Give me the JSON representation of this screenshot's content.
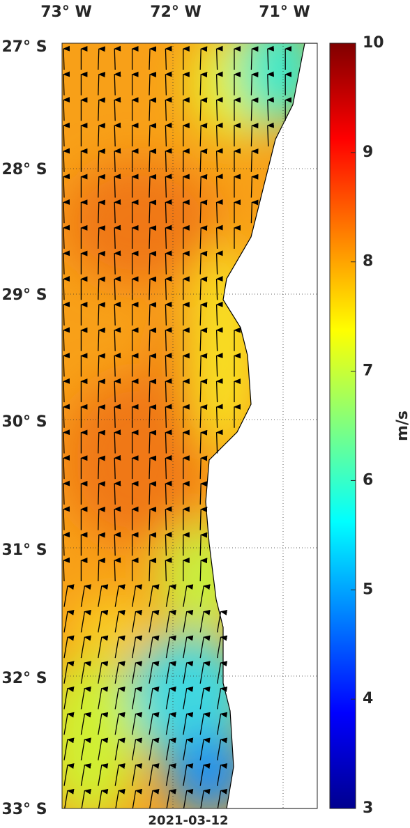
{
  "map": {
    "lon_labels": [
      "73° W",
      "72° W",
      "71° W"
    ],
    "lat_labels": [
      "27° S",
      "28° S",
      "29° S",
      "30° S",
      "31° S",
      "32° S",
      "33° S"
    ],
    "date": "2021-03-12",
    "colorbar": {
      "lim": [
        3,
        10
      ],
      "ticks": [
        3,
        4,
        5,
        6,
        7,
        8,
        9,
        10
      ],
      "label": "m/s"
    }
  }
}
